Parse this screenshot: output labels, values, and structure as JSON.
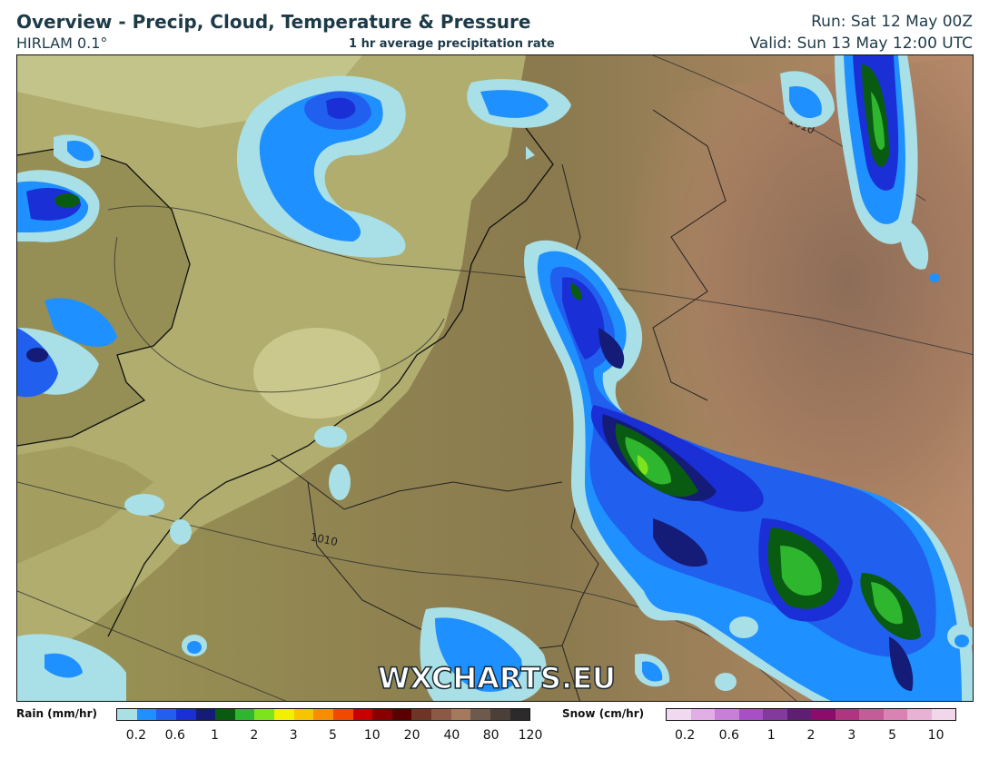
{
  "header": {
    "title": "Overview - Precip, Cloud, Temperature & Pressure",
    "model": "HIRLAM 0.1°",
    "subtitle": "1 hr average precipitation rate",
    "run": "Run: Sat 12 May 00Z",
    "valid": "Valid: Sun 13 May 12:00 UTC"
  },
  "map": {
    "watermark": "WXCHARTS.EU",
    "isobar_labels": [
      "1010",
      "1010"
    ]
  },
  "legend": {
    "rain": {
      "label": "Rain (mm/hr)",
      "colors": [
        "#a9dfe6",
        "#1e90ff",
        "#2160ee",
        "#1a2fd6",
        "#141c78",
        "#0a5b12",
        "#2fb62f",
        "#7de31c",
        "#f0f000",
        "#f6c400",
        "#f78e00",
        "#f04a00",
        "#c80000",
        "#8a0000",
        "#5b0000",
        "#6e3527",
        "#8c5a44",
        "#a57a5c",
        "#6d5a4c",
        "#4c3f37",
        "#2c2a2a"
      ],
      "ticks": [
        "0.2",
        "0.6",
        "1",
        "2",
        "3",
        "5",
        "10",
        "20",
        "40",
        "80",
        "120"
      ]
    },
    "snow": {
      "label": "Snow (cm/hr)",
      "colors": [
        "#f2d9f2",
        "#e2aee6",
        "#c87fd8",
        "#a74fc4",
        "#823a9c",
        "#5e1f73",
        "#8d0b6a",
        "#b0347f",
        "#c45c97",
        "#d883b4",
        "#e8b2d4",
        "#f2d6ea"
      ],
      "ticks": [
        "0.2",
        "0.6",
        "1",
        "2",
        "3",
        "5",
        "10"
      ]
    }
  }
}
